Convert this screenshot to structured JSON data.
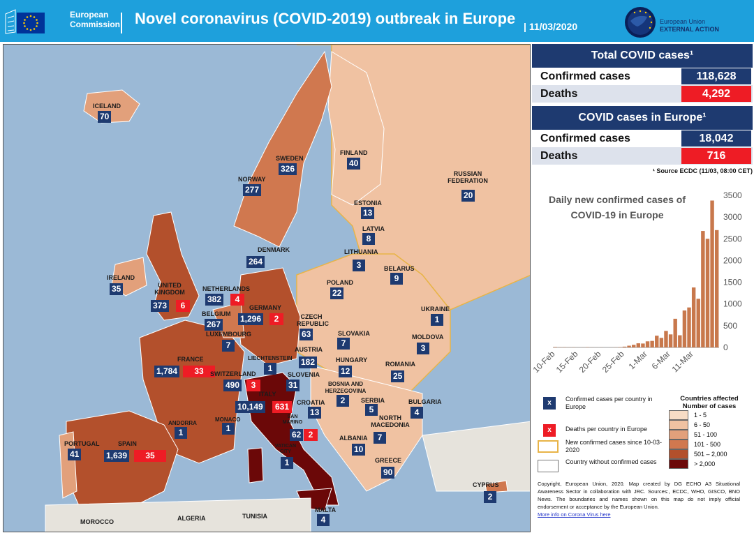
{
  "header": {
    "ec_label_line1": "European",
    "ec_label_line2": "Commission",
    "title": "Novel coronavirus (COVID-2019) outbreak in Europe",
    "date": "11/03/2020",
    "eeas_line1": "European Union",
    "eeas_line2": "EXTERNAL ACTION"
  },
  "colors": {
    "sea": "#9bb9d6",
    "header": "#1ea0dc",
    "navy": "#1e3a70",
    "red": "#ee1c25",
    "ramp": [
      "#f7dcc5",
      "#f0c2a2",
      "#e2a07b",
      "#d0784f",
      "#b3502c",
      "#6b0808"
    ]
  },
  "total": {
    "title": "Total COVID cases¹",
    "confirmed_label": "Confirmed cases",
    "confirmed_value": "118,628",
    "deaths_label": "Deaths",
    "deaths_value": "4,292"
  },
  "europe": {
    "title": "COVID cases in Europe¹",
    "confirmed_label": "Confirmed cases",
    "confirmed_value": "18,042",
    "deaths_label": "Deaths",
    "deaths_value": "716"
  },
  "source_note": "¹ Source ECDC (11/03, 08:00 CET)",
  "chart_data": {
    "type": "bar",
    "title": "Daily new confirmed cases of COVID-19 in Europe",
    "ylim": [
      0,
      3500
    ],
    "y_ticks": [
      0,
      500,
      1000,
      1500,
      2000,
      2500,
      3000,
      3500
    ],
    "x_tick_labels": [
      "10-Feb",
      "15-Feb",
      "20-Feb",
      "25-Feb",
      "1-Mar",
      "6-Mar",
      "11-Mar"
    ],
    "start_date": "2020-02-10",
    "values": [
      10,
      5,
      6,
      3,
      4,
      1,
      2,
      6,
      2,
      1,
      2,
      0,
      1,
      3,
      8,
      18,
      40,
      60,
      95,
      90,
      140,
      150,
      270,
      220,
      380,
      300,
      660,
      280,
      850,
      920,
      1380,
      1120,
      2680,
      2500,
      3380,
      2700
    ]
  },
  "legend": {
    "confirmed_marker": "x",
    "confirmed_text": "Confirmed cases per country in Europe",
    "deaths_marker": "x",
    "deaths_text": "Deaths per country in Europe",
    "new_text": "New confirmed cases since 10-03-2020",
    "none_text": "Country without confirmed cases"
  },
  "ramp": {
    "title": "Countries affected Number of cases",
    "labels": [
      "1 - 5",
      "6 - 50",
      "51 - 100",
      "101 - 500",
      "501 – 2,000",
      "> 2,000"
    ]
  },
  "copyright_text": "Copyright, European Union, 2020. Map created by DG ECHO A3 Situational Awareness Sector in collaboration with JRC. Sources:, ECDC, WHO, GISCO, BNO News. The boundaries and names shown on this map do not imply official endorsement or acceptance by the European Union.",
  "more_info": "More info on Corona Virus here",
  "countries": [
    {
      "name": "ICELAND",
      "cases": "70"
    },
    {
      "name": "NORWAY",
      "cases": "277"
    },
    {
      "name": "SWEDEN",
      "cases": "326"
    },
    {
      "name": "FINLAND",
      "cases": "40"
    },
    {
      "name": "RUSSIAN FEDERATION",
      "cases": "20"
    },
    {
      "name": "ESTONIA",
      "cases": "13"
    },
    {
      "name": "LATVIA",
      "cases": "8"
    },
    {
      "name": "LITHUANIA",
      "cases": "3"
    },
    {
      "name": "DENMARK",
      "cases": "264"
    },
    {
      "name": "BELARUS",
      "cases": "9"
    },
    {
      "name": "IRELAND",
      "cases": "35"
    },
    {
      "name": "UNITED KINGDOM",
      "cases": "373",
      "deaths": "6"
    },
    {
      "name": "NETHERLANDS",
      "cases": "382",
      "deaths": "4"
    },
    {
      "name": "GERMANY",
      "cases": "1,296",
      "deaths": "2"
    },
    {
      "name": "BELGIUM",
      "cases": "267"
    },
    {
      "name": "POLAND",
      "cases": "22"
    },
    {
      "name": "CZECH REPUBLIC",
      "cases": "63"
    },
    {
      "name": "UKRAINE",
      "cases": "1"
    },
    {
      "name": "LUXEMBOURG",
      "cases": "7"
    },
    {
      "name": "SLOVAKIA",
      "cases": "7"
    },
    {
      "name": "MOLDOVA",
      "cases": "3"
    },
    {
      "name": "FRANCE",
      "cases": "1,784",
      "deaths": "33"
    },
    {
      "name": "LIECHTENSTEIN",
      "cases": "1"
    },
    {
      "name": "AUSTRIA",
      "cases": "182"
    },
    {
      "name": "HUNGARY",
      "cases": "12"
    },
    {
      "name": "ROMANIA",
      "cases": "25"
    },
    {
      "name": "SWITZERLAND",
      "cases": "490",
      "deaths": "3"
    },
    {
      "name": "SLOVENIA",
      "cases": "31"
    },
    {
      "name": "BOSNIA AND HERZEGOVINA",
      "cases": "2"
    },
    {
      "name": "ITALY",
      "cases": "10,149",
      "deaths": "631"
    },
    {
      "name": "CROATIA",
      "cases": "13"
    },
    {
      "name": "SERBIA",
      "cases": "5"
    },
    {
      "name": "BULGARIA",
      "cases": "4"
    },
    {
      "name": "MONACO",
      "cases": "1"
    },
    {
      "name": "ANDORRA",
      "cases": "1"
    },
    {
      "name": "SAN MARINO",
      "cases": "62",
      "deaths": "2"
    },
    {
      "name": "NORTH MACEDONIA",
      "cases": "7"
    },
    {
      "name": "ALBANIA",
      "cases": "10"
    },
    {
      "name": "PORTUGAL",
      "cases": "41"
    },
    {
      "name": "SPAIN",
      "cases": "1,639",
      "deaths": "35"
    },
    {
      "name": "VATICAN CITY",
      "cases": "1"
    },
    {
      "name": "GREECE",
      "cases": "90"
    },
    {
      "name": "CYPRUS",
      "cases": "2"
    },
    {
      "name": "MALTA",
      "cases": "4"
    },
    {
      "name": "MOROCCO"
    },
    {
      "name": "ALGERIA"
    },
    {
      "name": "TUNISIA"
    }
  ]
}
